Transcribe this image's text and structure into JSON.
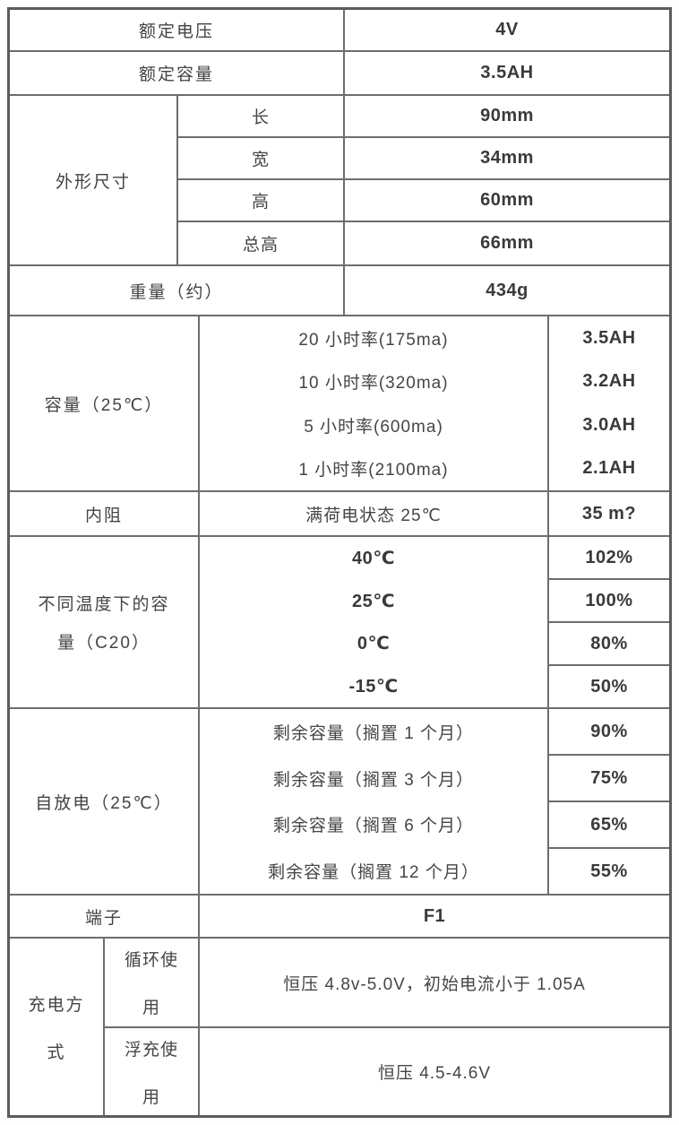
{
  "table": {
    "rated_voltage": {
      "label": "额定电压",
      "value": "4V"
    },
    "rated_capacity": {
      "label": "额定容量",
      "value": "3.5AH"
    },
    "dimensions": {
      "label": "外形尺寸",
      "rows": [
        {
          "label": "长",
          "value": "90mm"
        },
        {
          "label": "宽",
          "value": "34mm"
        },
        {
          "label": "高",
          "value": "60mm"
        },
        {
          "label": "总高",
          "value": "66mm"
        }
      ]
    },
    "weight": {
      "label": "重量（约）",
      "value": "434g"
    },
    "capacity": {
      "label": "容量（25℃）",
      "rows": [
        {
          "label": "20 小时率(175ma)",
          "value": "3.5AH"
        },
        {
          "label": "10 小时率(320ma)",
          "value": "3.2AH"
        },
        {
          "label": "5 小时率(600ma)",
          "value": "3.0AH"
        },
        {
          "label": "1 小时率(2100ma)",
          "value": "2.1AH"
        }
      ]
    },
    "internal_resistance": {
      "label": "内阻",
      "condition": "满荷电状态 25℃",
      "value": "35 m?"
    },
    "capacity_by_temperature": {
      "label_lines": [
        "不同温度下的容",
        "量（C20）"
      ],
      "rows": [
        {
          "label": "40℃",
          "value": "102%"
        },
        {
          "label": "25℃",
          "value": "100%"
        },
        {
          "label": "0℃",
          "value": "80%"
        },
        {
          "label": "-15℃",
          "value": "50%"
        }
      ]
    },
    "self_discharge": {
      "label": "自放电（25℃）",
      "rows": [
        {
          "label": "剩余容量（搁置 1 个月）",
          "value": "90%"
        },
        {
          "label": "剩余容量（搁置 3 个月）",
          "value": "75%"
        },
        {
          "label": "剩余容量（搁置 6 个月）",
          "value": "65%"
        },
        {
          "label": "剩余容量（搁置 12 个月）",
          "value": "55%"
        }
      ]
    },
    "terminal": {
      "label": "端子",
      "value": "F1"
    },
    "charging": {
      "label_lines": [
        "充电方",
        "式"
      ],
      "rows": [
        {
          "label_lines": [
            "循环使",
            "用"
          ],
          "value": "恒压 4.8v-5.0V，初始电流小于 1.05A"
        },
        {
          "label_lines": [
            "浮充使",
            "用"
          ],
          "value": "恒压 4.5-4.6V"
        }
      ]
    }
  }
}
